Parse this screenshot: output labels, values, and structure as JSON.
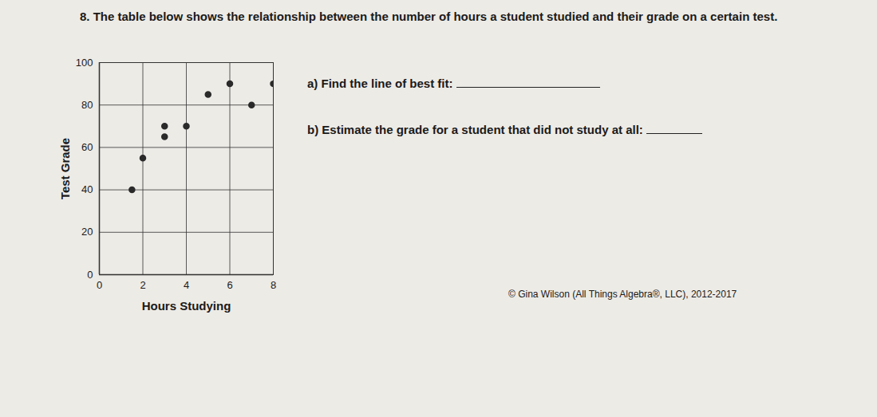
{
  "question": {
    "number": "8.",
    "text": "The table below shows the relationship between the number of hours a student studied and their grade on a certain test."
  },
  "chart_data": {
    "type": "scatter",
    "x_label": "Hours Studying",
    "y_label": "Test Grade",
    "x": [
      1.5,
      2,
      3,
      3,
      4,
      5,
      6,
      7,
      8
    ],
    "values": [
      40,
      55,
      65,
      70,
      70,
      85,
      90,
      80,
      90
    ],
    "color": "#2a2a2a",
    "marker": "circle",
    "xlim": [
      0,
      8
    ],
    "xticks": [
      0,
      2,
      4,
      6,
      8
    ],
    "ylim": [
      0,
      100
    ],
    "yticks": [
      0,
      20,
      40,
      60,
      80,
      100
    ],
    "grid": true
  },
  "parts": [
    {
      "label": "a)",
      "text": "Find the line of best fit:"
    },
    {
      "label": "b)",
      "text": "Estimate the grade for a student that did not study at all:"
    }
  ],
  "copyright": "© Gina Wilson (All Things Algebra®, LLC), 2012-2017"
}
